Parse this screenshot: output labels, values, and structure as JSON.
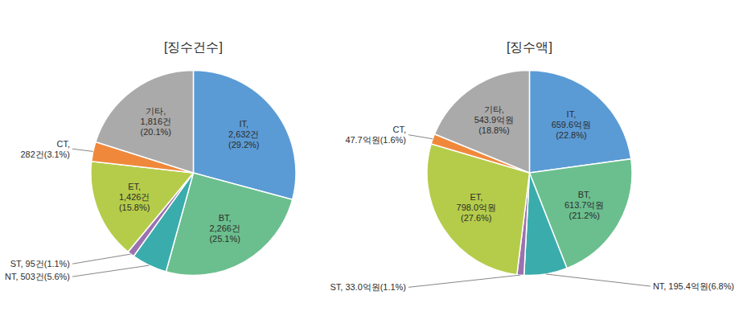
{
  "chart_data": [
    {
      "type": "pie",
      "title": "[징수건수]",
      "values": [
        29.2,
        25.1,
        5.6,
        1.1,
        15.8,
        3.1,
        20.1
      ],
      "value_labels": [
        "IT,\n2,632건\n(29.2%)",
        "BT,\n2,266건\n(25.1%)",
        "NT, 503건(5.6%)",
        "ST, 95건(1.1%)",
        "ET,\n1,426건\n(15.8%)",
        "CT,\n282건(3.1%)",
        "기타,\n1,816건\n(20.1%)"
      ],
      "colors": [
        "#5B9BD5",
        "#6BBF8E",
        "#3AACAC",
        "#9B72B0",
        "#B5CC4A",
        "#F0883C",
        "#AAAAAA"
      ],
      "data_labels": true
    },
    {
      "type": "pie",
      "title": "[징수액]",
      "values": [
        22.8,
        21.2,
        6.8,
        1.1,
        27.6,
        1.6,
        18.8
      ],
      "value_labels": [
        "IT,\n659.6억원\n(22.8%)",
        "BT,\n613.7억원\n(21.2%)",
        "NT, 195.4억원(6.8%)",
        "ST, 33.0억원(1.1%)",
        "ET,\n798.0억원\n(27.6%)",
        "CT,\n47.7억원(1.6%)",
        "기타,\n543.9억원\n(18.8%)"
      ],
      "colors": [
        "#5B9BD5",
        "#6BBF8E",
        "#3AACAC",
        "#9B72B0",
        "#B5CC4A",
        "#F0883C",
        "#AAAAAA"
      ],
      "data_labels": true
    }
  ]
}
